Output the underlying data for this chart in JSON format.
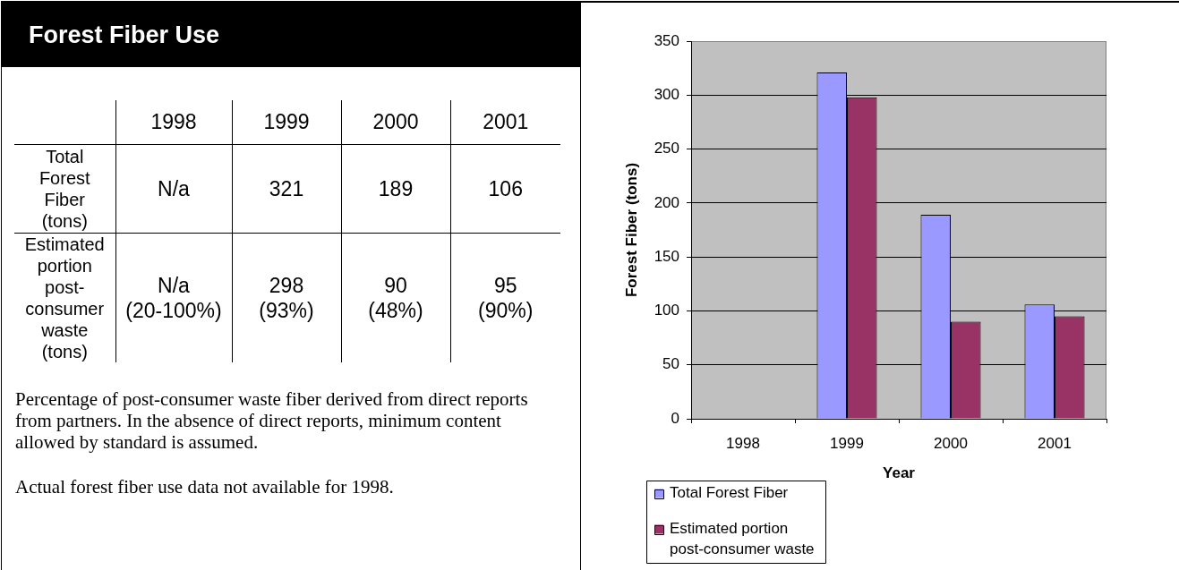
{
  "chart_data": [
    {
      "type": "heatmap",
      "title": "Forest Fiber Use",
      "categories": [
        "1998",
        "1999",
        "2000",
        "2001"
      ],
      "y_categories": [
        "Total Forest Fiber (tons)",
        "Estimated portion post-consumer waste (tons)"
      ],
      "cells": [
        [
          null,
          null,
          null,
          null
        ],
        [
          null,
          null,
          null,
          null
        ]
      ],
      "cell_labels": [
        [
          "N/a",
          "321",
          "189",
          "106"
        ],
        [
          "N/a\n(20-100%)",
          "298\n(93%)",
          "90\n(48%)",
          "95\n(90%)"
        ]
      ],
      "grid": true,
      "annotations": [
        "Percentage of post-consumer waste fiber derived from direct reports from partners. In the absence of direct reports, minimum content allowed by standard is assumed.",
        "Actual forest fiber use data not available for 1998."
      ]
    },
    {
      "type": "bar",
      "categories": [
        "1998",
        "1999",
        "2000",
        "2001"
      ],
      "series": [
        {
          "name": "Total Forest Fiber",
          "color": "#9999ff",
          "values": [
            null,
            321,
            189,
            106
          ]
        },
        {
          "name": "Estimated portion post-consumer waste",
          "color": "#993366",
          "values": [
            null,
            298,
            90,
            95
          ]
        }
      ],
      "xlabel": "Year",
      "ylabel": "Forest Fiber (tons)",
      "ylim": [
        0,
        350
      ],
      "yticks": [
        0,
        50,
        100,
        150,
        200,
        250,
        300,
        350
      ],
      "grid": "y",
      "legend": "bottom left"
    }
  ]
}
